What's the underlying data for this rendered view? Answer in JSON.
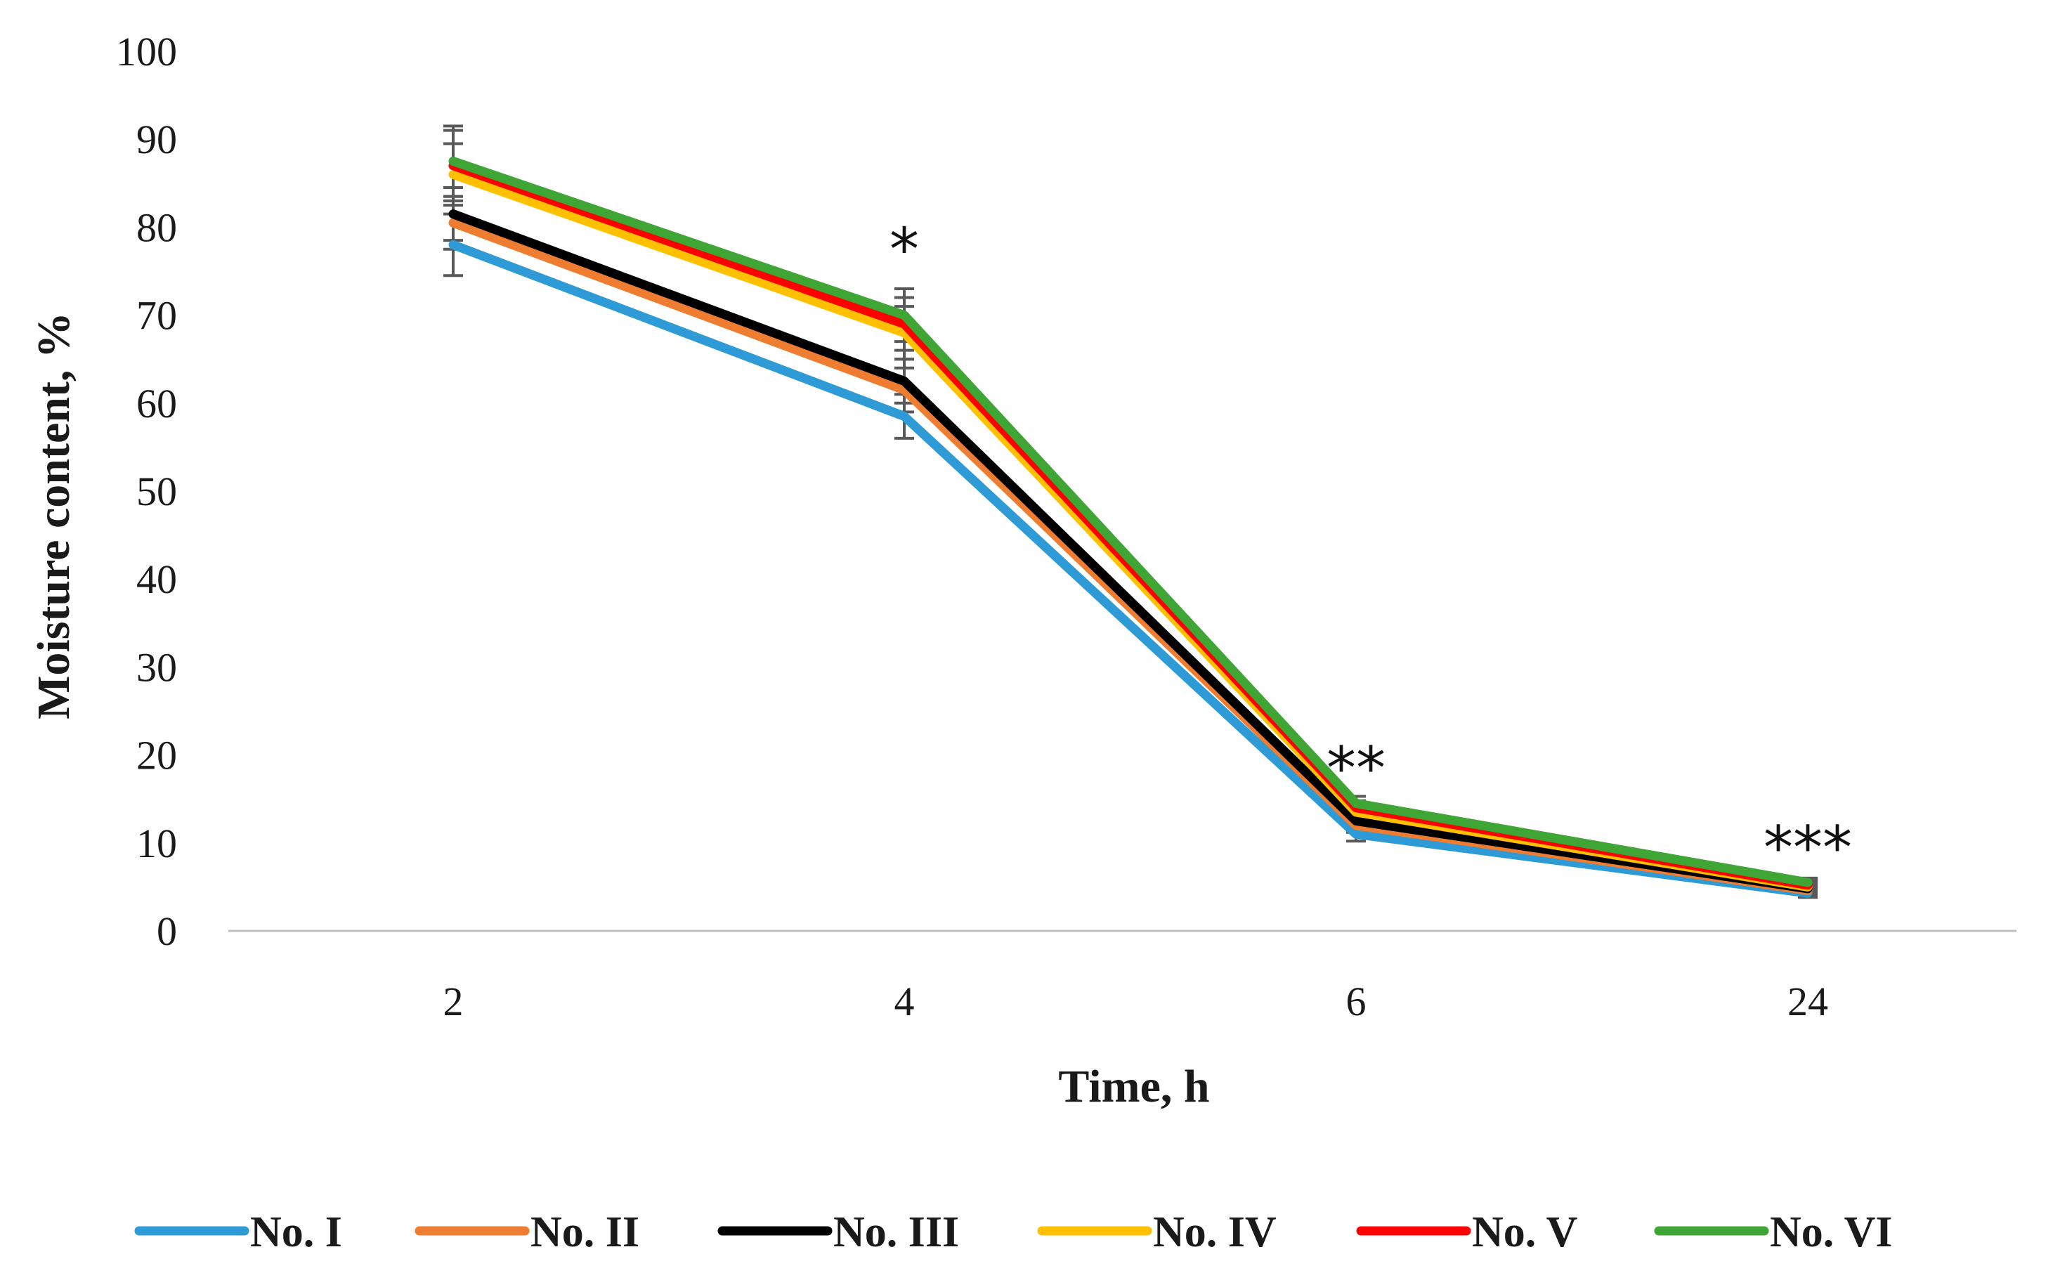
{
  "chart_data": {
    "type": "line",
    "title": "",
    "xlabel": "Time, h",
    "ylabel": "Moisture content, %",
    "categories": [
      "2",
      "4",
      "6",
      "24"
    ],
    "ylim": [
      0,
      100
    ],
    "yticks": [
      0,
      10,
      20,
      30,
      40,
      50,
      60,
      70,
      80,
      90,
      100
    ],
    "ytick_labels": [
      "0",
      "10",
      "20",
      "30",
      "40",
      "50",
      "60",
      "70",
      "80",
      "90",
      "100"
    ],
    "grid": false,
    "legend_position": "bottom",
    "series": [
      {
        "name": "No. I",
        "color": "#2e9bd6",
        "values": [
          78,
          58.5,
          11,
          4.3
        ],
        "error": [
          3.5,
          2.5,
          0.8,
          0.5
        ]
      },
      {
        "name": "No. II",
        "color": "#ee7d31",
        "values": [
          80.5,
          61.5,
          12,
          4.6
        ],
        "error": [
          3.0,
          2.5,
          0.8,
          0.5
        ]
      },
      {
        "name": "No. III",
        "color": "#000000",
        "values": [
          81.5,
          62.5,
          12.5,
          4.8
        ],
        "error": [
          3.0,
          2.5,
          0.8,
          0.5
        ]
      },
      {
        "name": "No. IV",
        "color": "#ffc000",
        "values": [
          86,
          68,
          13.5,
          5
        ],
        "error": [
          3.5,
          3.0,
          0.8,
          0.5
        ]
      },
      {
        "name": "No. V",
        "color": "#ff0000",
        "values": [
          87,
          69,
          14,
          5.2
        ],
        "error": [
          4.0,
          3.0,
          0.8,
          0.5
        ]
      },
      {
        "name": "No. VI",
        "color": "#3fa535",
        "values": [
          87.5,
          70,
          14.5,
          5.5
        ],
        "error": [
          4.0,
          3.0,
          0.8,
          0.5
        ]
      }
    ],
    "annotations": [
      {
        "category": "4",
        "text": "*",
        "y": 79
      },
      {
        "category": "6",
        "text": "**",
        "y": 20
      },
      {
        "category": "24",
        "text": "***",
        "y": 11
      }
    ]
  }
}
